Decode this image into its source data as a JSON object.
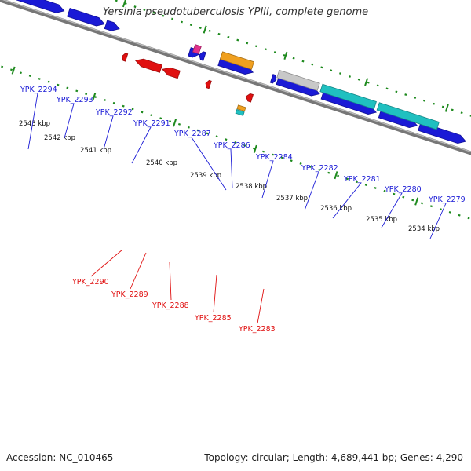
{
  "title": "Yersinia pseudotuberculosis YPIII, complete genome",
  "footer": {
    "accession": "Accession: NC_010465",
    "summary": "Topology: circular; Length: 4,689,441 bp; Genes: 4,290"
  },
  "colors": {
    "forward": "#1a1ad6",
    "reverse": "#e01010",
    "tick": "#1e8a1e",
    "backbone": "#777777",
    "gray_gene": "#8a8a8a",
    "light_gray_gene": "#c8c8c8",
    "cyan_gene": "#20c0c0",
    "orange_gene": "#f0a020",
    "pink_gene": "#e0308a"
  },
  "kbp_labels": [
    "2543 kbp",
    "2542 kbp",
    "2541 kbp",
    "2540 kbp",
    "2539 kbp",
    "2538 kbp",
    "2537 kbp",
    "2536 kbp",
    "2535 kbp",
    "2534 kbp"
  ],
  "forward_genes": [
    "YPK_2294",
    "YPK_2293",
    "YPK_2292",
    "YPK_2291",
    "YPK_2287",
    "YPK_2286",
    "YPK_2284",
    "YPK_2282",
    "YPK_2281",
    "YPK_2280",
    "YPK_2279"
  ],
  "reverse_genes": [
    "YPK_2290",
    "YPK_2289",
    "YPK_2288",
    "YPK_2285",
    "YPK_2283"
  ]
}
